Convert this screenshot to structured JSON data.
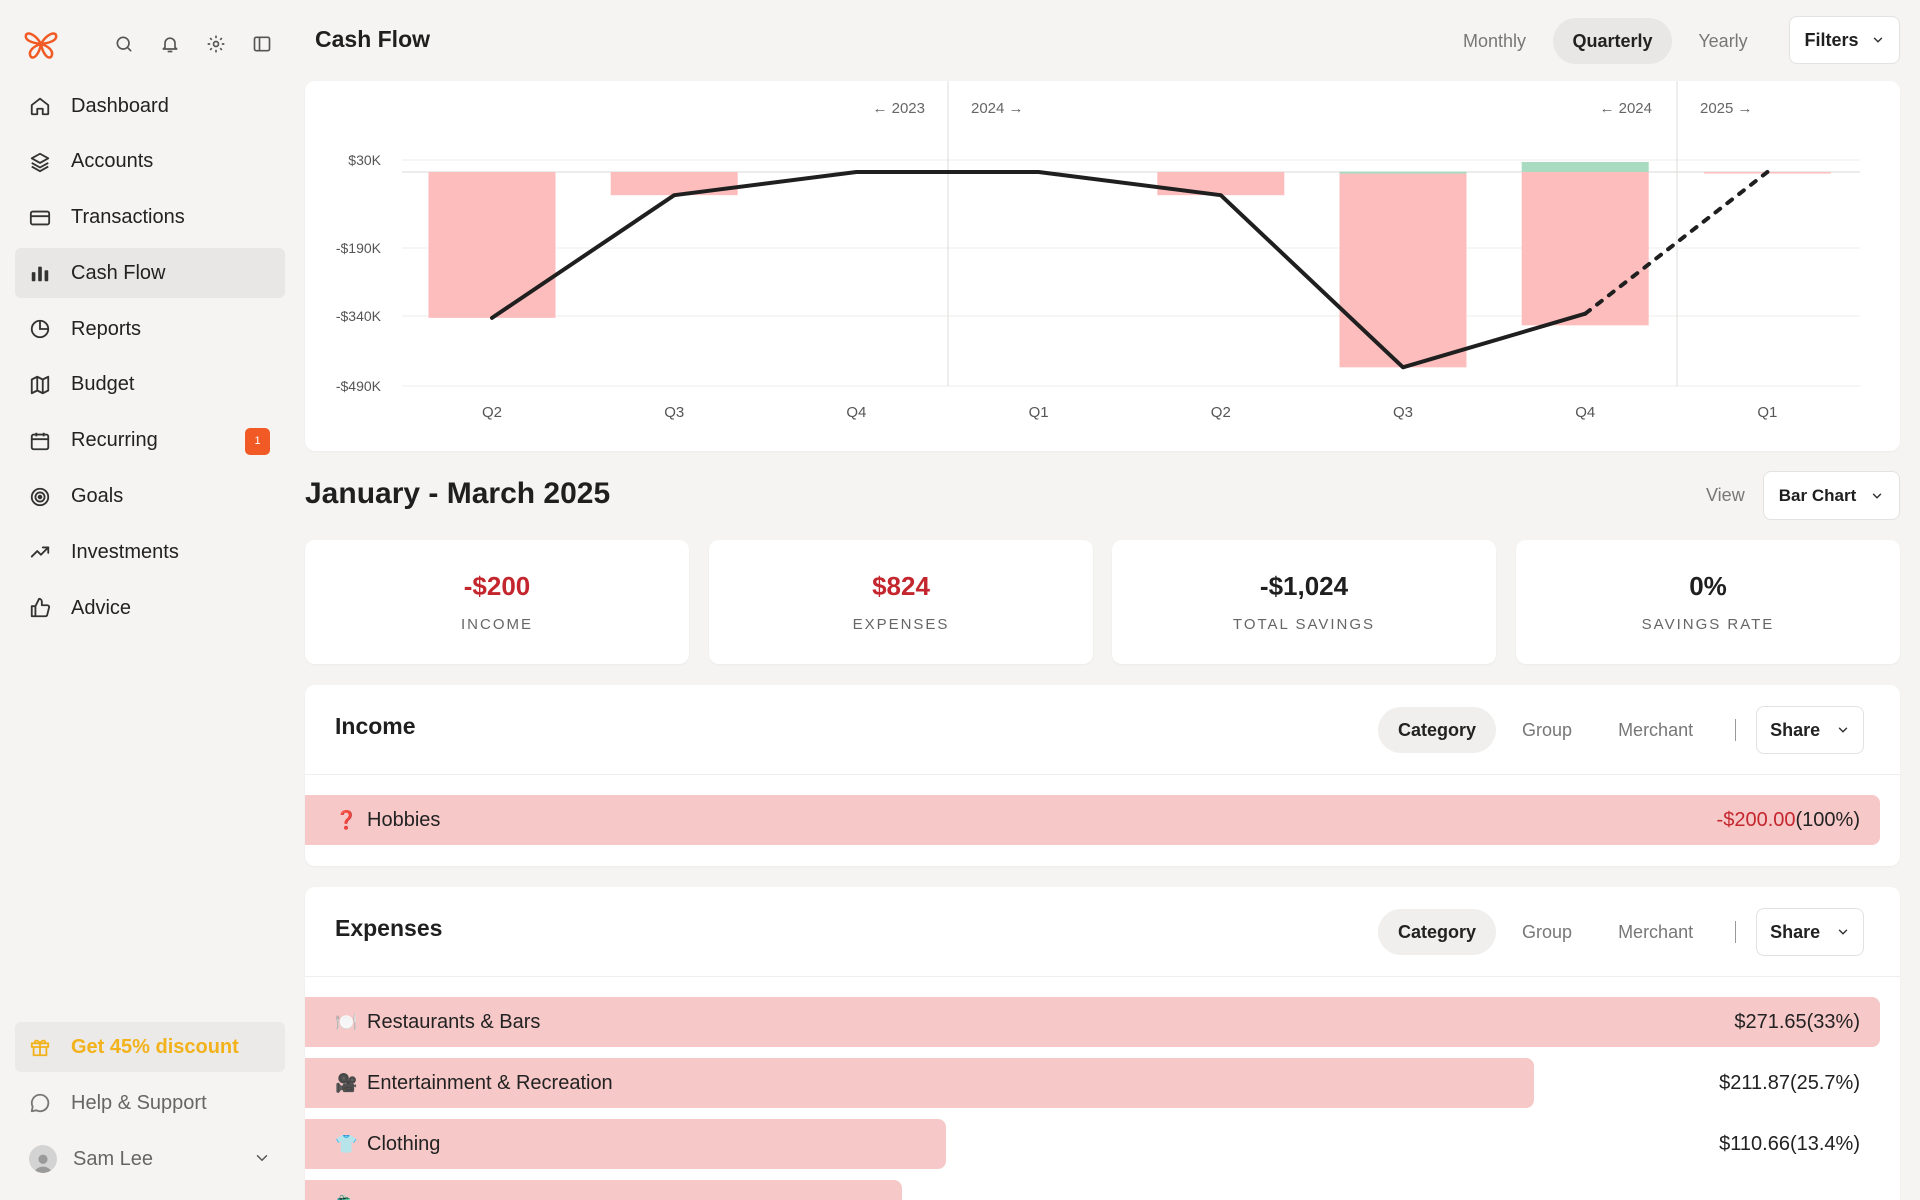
{
  "sidebar": {
    "nav": [
      {
        "label": "Dashboard",
        "icon": "home-icon"
      },
      {
        "label": "Accounts",
        "icon": "layers-icon"
      },
      {
        "label": "Transactions",
        "icon": "credit-card-icon"
      },
      {
        "label": "Cash Flow",
        "icon": "bar-chart-icon",
        "active": true
      },
      {
        "label": "Reports",
        "icon": "pie-chart-icon"
      },
      {
        "label": "Budget",
        "icon": "map-icon"
      },
      {
        "label": "Recurring",
        "icon": "calendar-icon",
        "badge": "1"
      },
      {
        "label": "Goals",
        "icon": "target-icon"
      },
      {
        "label": "Investments",
        "icon": "trending-up-icon"
      },
      {
        "label": "Advice",
        "icon": "thumbs-up-icon"
      }
    ],
    "discount_label": "Get 45% discount",
    "help_label": "Help & Support",
    "user_name": "Sam Lee"
  },
  "header": {
    "title": "Cash Flow",
    "periods": [
      "Monthly",
      "Quarterly",
      "Yearly"
    ],
    "active_period": "Quarterly",
    "filters_label": "Filters"
  },
  "chart_data": {
    "type": "bar",
    "categories": [
      "Q2",
      "Q3",
      "Q4",
      "Q1",
      "Q2",
      "Q3",
      "Q4",
      "Q1"
    ],
    "y_ticks": [
      "$30K",
      "-$190K",
      "-$340K",
      "-$490K"
    ],
    "ylim": [
      -490000,
      30000
    ],
    "year_markers": [
      "← 2023",
      "2024 →",
      "← 2024",
      "2025 →"
    ],
    "series": [
      {
        "name": "",
        "values": [
          0,
          0,
          0,
          0,
          0,
          1000,
          25000,
          0
        ],
        "color": "#a8dbc0"
      },
      {
        "name": "",
        "values": [
          -344000,
          -58000,
          0,
          0,
          -58000,
          -450000,
          -360000,
          -2000
        ],
        "color": "#fdbdbd"
      },
      {
        "name": "",
        "values": [
          -344000,
          -58000,
          0,
          0,
          -58000,
          -450000,
          -335000,
          null
        ],
        "color": "#1f1f1f"
      },
      {
        "name": "",
        "values": [
          null,
          null,
          null,
          null,
          null,
          null,
          -335000,
          0
        ],
        "color": "#1f1f1f",
        "dashed": true
      }
    ]
  },
  "period": {
    "title": "January - March 2025",
    "view_label": "View",
    "view_value": "Bar Chart"
  },
  "stats": [
    {
      "value": "-$200",
      "label": "INCOME",
      "red": true
    },
    {
      "value": "$824",
      "label": "EXPENSES",
      "red": true
    },
    {
      "value": "-$1,024",
      "label": "TOTAL SAVINGS",
      "red": false
    },
    {
      "value": "0%",
      "label": "SAVINGS RATE",
      "red": false
    }
  ],
  "income": {
    "title": "Income",
    "tabs": [
      "Category",
      "Group",
      "Merchant"
    ],
    "share_label": "Share",
    "rows": [
      {
        "emoji": "❓",
        "name": "Hobbies",
        "amount": "-$200.00",
        "pct": " (100%)",
        "fraction": 1.0,
        "negative": true
      }
    ]
  },
  "expenses": {
    "title": "Expenses",
    "tabs": [
      "Category",
      "Group",
      "Merchant"
    ],
    "share_label": "Share",
    "rows": [
      {
        "emoji": "🍽️",
        "name": "Restaurants & Bars",
        "amount": "$271.65",
        "pct": " (33%)",
        "fraction": 1.0
      },
      {
        "emoji": "🎥",
        "name": "Entertainment & Recreation",
        "amount": "$211.87",
        "pct": " (25.7%)",
        "fraction": 0.78
      },
      {
        "emoji": "👕",
        "name": "Clothing",
        "amount": "$110.66",
        "pct": " (13.4%)",
        "fraction": 0.407
      },
      {
        "emoji": "🛍️",
        "name": "",
        "amount": "",
        "pct": "",
        "fraction": 0.379
      }
    ]
  },
  "colors": {
    "accent": "#f15a24",
    "negative": "#c4262e",
    "bar_negative": "#fdbdbd",
    "bar_positive": "#a8dbc0"
  }
}
